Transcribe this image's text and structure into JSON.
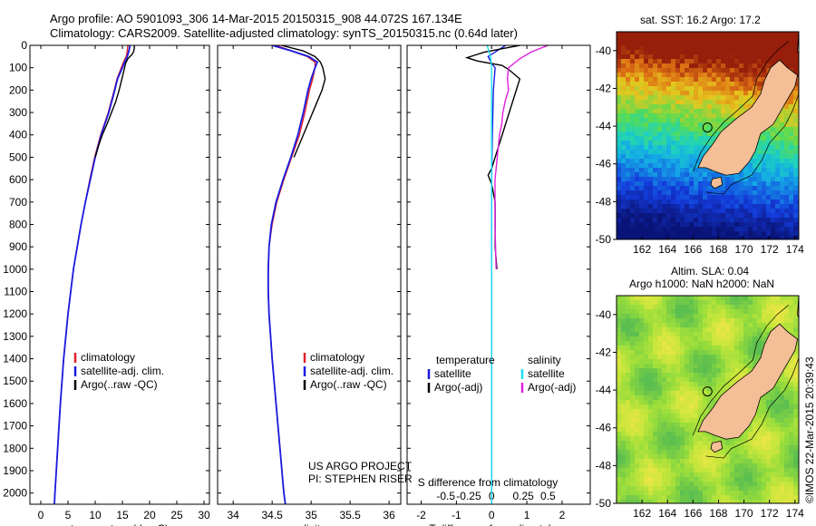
{
  "header": {
    "line1": "Argo profile: AO 5901093_306 14-Mar-2015 20150315_908 44.072S 167.134E",
    "line2": "Climatology: CARS2009. Satellite-adjusted climatology: synTS_20150315.nc (0.64d later)"
  },
  "side_text": "©IMOS 22-Mar-2015 20:39:43",
  "map_titles": {
    "sst": "sat. SST: 16.2 Argo: 17.2",
    "sla_line1": "Altim. SLA: 0.04",
    "sla_line2": "Argo h1000: NaN h2000: NaN"
  },
  "credits": {
    "line1": "US ARGO PROJECT",
    "line2": "PI: STEPHEN RISER"
  },
  "colors": {
    "climatology": "#e0202a",
    "satellite": "#1a1ae0",
    "argo": "#000000",
    "sat_salinity": "#18e0f0",
    "argo_salinity": "#e020e0",
    "land": "#f4be96"
  },
  "chart_data": [
    {
      "type": "line",
      "xlabel": "temperature (deg C)",
      "ylabel": "",
      "xlim": [
        -2,
        31
      ],
      "ylim": [
        2050,
        0
      ],
      "xticks": [
        0,
        5,
        10,
        15,
        20,
        25,
        30
      ],
      "yticks": [
        0,
        100,
        200,
        300,
        400,
        500,
        600,
        700,
        800,
        900,
        1000,
        1100,
        1200,
        1300,
        1400,
        1500,
        1600,
        1700,
        1800,
        1900,
        2000
      ],
      "legend": [
        "climatology",
        "satellite-adj. clim.",
        "Argo(..raw -QC)"
      ],
      "series": [
        {
          "name": "climatology",
          "depth": [
            0,
            25,
            50,
            75,
            100,
            150,
            200,
            300,
            400,
            500,
            600,
            700,
            800,
            900,
            1000,
            1200,
            1400,
            1600,
            1800,
            2000,
            2050
          ],
          "values": [
            16.0,
            15.9,
            15.7,
            15.2,
            14.8,
            14.0,
            13.5,
            12.4,
            11.0,
            9.9,
            9.0,
            8.2,
            7.4,
            6.7,
            6.0,
            5.0,
            4.2,
            3.6,
            3.1,
            2.6,
            2.5
          ]
        },
        {
          "name": "satellite-adj. clim.",
          "depth": [
            0,
            25,
            50,
            75,
            100,
            150,
            200,
            300,
            400,
            500,
            600,
            700,
            800,
            900,
            1000,
            1200,
            1400,
            1600,
            1800,
            2000,
            2050
          ],
          "values": [
            16.4,
            16.2,
            15.9,
            15.4,
            15.0,
            14.1,
            13.6,
            12.5,
            11.1,
            10.0,
            9.1,
            8.2,
            7.4,
            6.7,
            6.0,
            5.0,
            4.2,
            3.6,
            3.1,
            2.6,
            2.5
          ]
        },
        {
          "name": "Argo(..raw -QC)",
          "depth": [
            0,
            10,
            25,
            40,
            60,
            80,
            100,
            150,
            200,
            250,
            300,
            350,
            400,
            450,
            500
          ],
          "values": [
            17.2,
            17.2,
            17.1,
            16.8,
            16.0,
            15.6,
            15.4,
            14.9,
            14.4,
            13.8,
            13.0,
            12.2,
            11.3,
            10.6,
            10.0
          ]
        }
      ]
    },
    {
      "type": "line",
      "xlabel": "salinity",
      "ylabel": "",
      "xlim": [
        33.8,
        36.15
      ],
      "ylim": [
        2050,
        0
      ],
      "xticks": [
        34,
        34.5,
        35,
        35.5,
        36
      ],
      "legend": [
        "climatology",
        "satellite-adj. clim.",
        "Argo(..raw -QC)"
      ],
      "series": [
        {
          "name": "climatology",
          "depth": [
            0,
            25,
            50,
            75,
            100,
            150,
            200,
            300,
            400,
            500,
            600,
            700,
            800,
            900,
            1000,
            1100,
            1200,
            1400,
            1600,
            1800,
            2000,
            2050
          ],
          "values": [
            34.55,
            34.75,
            34.95,
            35.05,
            35.05,
            35.02,
            34.98,
            34.92,
            34.85,
            34.75,
            34.65,
            34.56,
            34.5,
            34.46,
            34.45,
            34.45,
            34.46,
            34.5,
            34.55,
            34.6,
            34.65,
            34.67
          ]
        },
        {
          "name": "satellite-adj. clim.",
          "depth": [
            0,
            25,
            50,
            75,
            100,
            150,
            200,
            300,
            400,
            500,
            600,
            700,
            800,
            900,
            1000,
            1100,
            1200,
            1400,
            1600,
            1800,
            2000,
            2050
          ],
          "values": [
            34.5,
            34.75,
            34.97,
            35.08,
            35.05,
            35.0,
            34.96,
            34.9,
            34.83,
            34.74,
            34.64,
            34.55,
            34.49,
            34.46,
            34.45,
            34.45,
            34.46,
            34.5,
            34.55,
            34.6,
            34.65,
            34.67
          ]
        },
        {
          "name": "Argo(..raw -QC)",
          "depth": [
            0,
            25,
            50,
            75,
            100,
            150,
            200,
            250,
            300,
            400,
            500
          ],
          "values": [
            34.62,
            34.9,
            35.05,
            35.12,
            35.15,
            35.18,
            35.14,
            35.08,
            35.02,
            34.9,
            34.78
          ]
        }
      ]
    },
    {
      "type": "line",
      "xlabel": "T difference from climatology",
      "xlabel_top": "S difference from climatology",
      "ylabel": "",
      "xlim": [
        -2.4,
        2.8
      ],
      "ylim": [
        2050,
        0
      ],
      "xticks": [
        -2,
        -1,
        0,
        1,
        2
      ],
      "xticks_top": [
        -0.5,
        -0.25,
        0,
        0.25,
        0.5
      ],
      "legend_temperature_title": "temperature",
      "legend_salinity_title": "salinity",
      "legend": [
        "satellite",
        "Argo(-adj)",
        "satellite",
        "Argo(-adj)"
      ],
      "series": [
        {
          "name": "satellite",
          "depth": [
            0,
            20,
            50,
            80,
            100,
            200,
            400,
            600,
            1000,
            1500,
            2050
          ],
          "values": [
            0.4,
            0.2,
            -0.1,
            0.0,
            0.1,
            0.05,
            0.02,
            0.0,
            0.0,
            0.0,
            0.0
          ]
        },
        {
          "name": "Argo(-adj)",
          "depth": [
            0,
            15,
            30,
            45,
            55,
            70,
            90,
            110,
            150,
            200,
            250,
            300,
            350,
            400,
            450,
            500,
            550,
            580,
            620,
            700,
            800,
            900,
            1000
          ],
          "values": [
            0.8,
            0.3,
            -0.2,
            -0.5,
            -0.7,
            -0.4,
            0.3,
            0.5,
            0.8,
            0.7,
            0.6,
            0.5,
            0.4,
            0.3,
            0.2,
            0.1,
            0.0,
            -0.1,
            0.0,
            0.1,
            0.1,
            0.1,
            0.15
          ]
        },
        {
          "name": "satellite",
          "depth": [
            0,
            50,
            100,
            500,
            1000,
            2050
          ],
          "values": [
            -0.04,
            -0.01,
            0.0,
            0.0,
            0.0,
            0.0
          ]
        },
        {
          "name": "Argo(-adj)",
          "depth": [
            0,
            30,
            60,
            80,
            100,
            150,
            200,
            250,
            300,
            350,
            400,
            450,
            500,
            600,
            800,
            1000
          ],
          "values": [
            0.5,
            0.35,
            0.25,
            0.2,
            0.15,
            0.14,
            0.15,
            0.12,
            0.1,
            0.09,
            0.07,
            0.06,
            0.05,
            0.03,
            0.03,
            0.04
          ]
        }
      ]
    },
    {
      "type": "heatmap",
      "title": "sat. SST: 16.2 Argo: 17.2",
      "xlim": [
        160,
        174.3
      ],
      "ylim": [
        -50,
        -39
      ],
      "xticks": [
        162,
        164,
        166,
        168,
        170,
        172,
        174
      ],
      "yticks": [
        -40,
        -42,
        -44,
        -46,
        -48,
        -50
      ],
      "argo_position": [
        167.134,
        -44.072
      ]
    },
    {
      "type": "heatmap",
      "title": "Altim. SLA: 0.04",
      "subtitle": "Argo h1000: NaN h2000: NaN",
      "xlim": [
        160,
        174.3
      ],
      "ylim": [
        -50,
        -39
      ],
      "xticks": [
        162,
        164,
        166,
        168,
        170,
        172,
        174
      ],
      "yticks": [
        -40,
        -42,
        -44,
        -46,
        -48,
        -50
      ],
      "argo_position": [
        167.134,
        -44.072
      ]
    }
  ]
}
